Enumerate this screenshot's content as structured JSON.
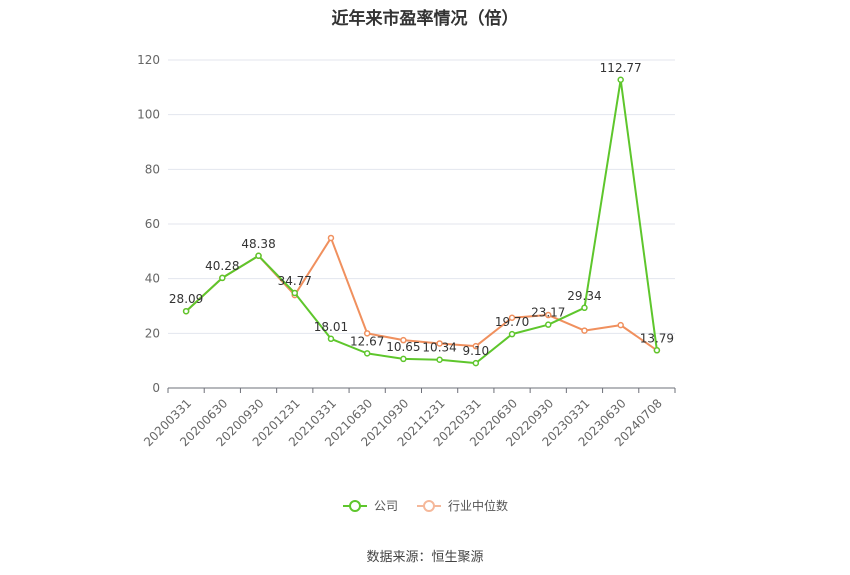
{
  "chart_data": {
    "type": "line",
    "title": "近年来市盈率情况（倍）",
    "categories": [
      "20200331",
      "20200630",
      "20200930",
      "20201231",
      "20210331",
      "20210630",
      "20210930",
      "20211231",
      "20220331",
      "20220630",
      "20220930",
      "20230331",
      "20230630",
      "20240708"
    ],
    "series": [
      {
        "name": "公司",
        "color": "#5ec62c",
        "values": [
          28.09,
          40.28,
          48.38,
          34.77,
          18.01,
          12.67,
          10.65,
          10.34,
          9.1,
          19.7,
          23.17,
          29.34,
          112.77,
          13.79
        ],
        "labels": [
          "28.09",
          "40.28",
          "48.38",
          "34.77",
          "18.01",
          "12.67",
          "10.65",
          "10.34",
          "9.10",
          "19.70",
          "23.17",
          "29.34",
          "112.77",
          "13.79"
        ]
      },
      {
        "name": "行业中位数",
        "color": "#f0905e",
        "values": [
          28.09,
          40.28,
          48.38,
          34.0,
          54.9,
          20.0,
          17.5,
          16.3,
          15.3,
          25.7,
          26.7,
          21.0,
          23.0,
          13.8
        ]
      }
    ],
    "yticks": [
      0,
      20,
      40,
      60,
      80,
      100,
      120
    ],
    "ylim": [
      0,
      120
    ],
    "grid": true,
    "legend_position": "bottom"
  },
  "source_text": "数据来源：恒生聚源"
}
